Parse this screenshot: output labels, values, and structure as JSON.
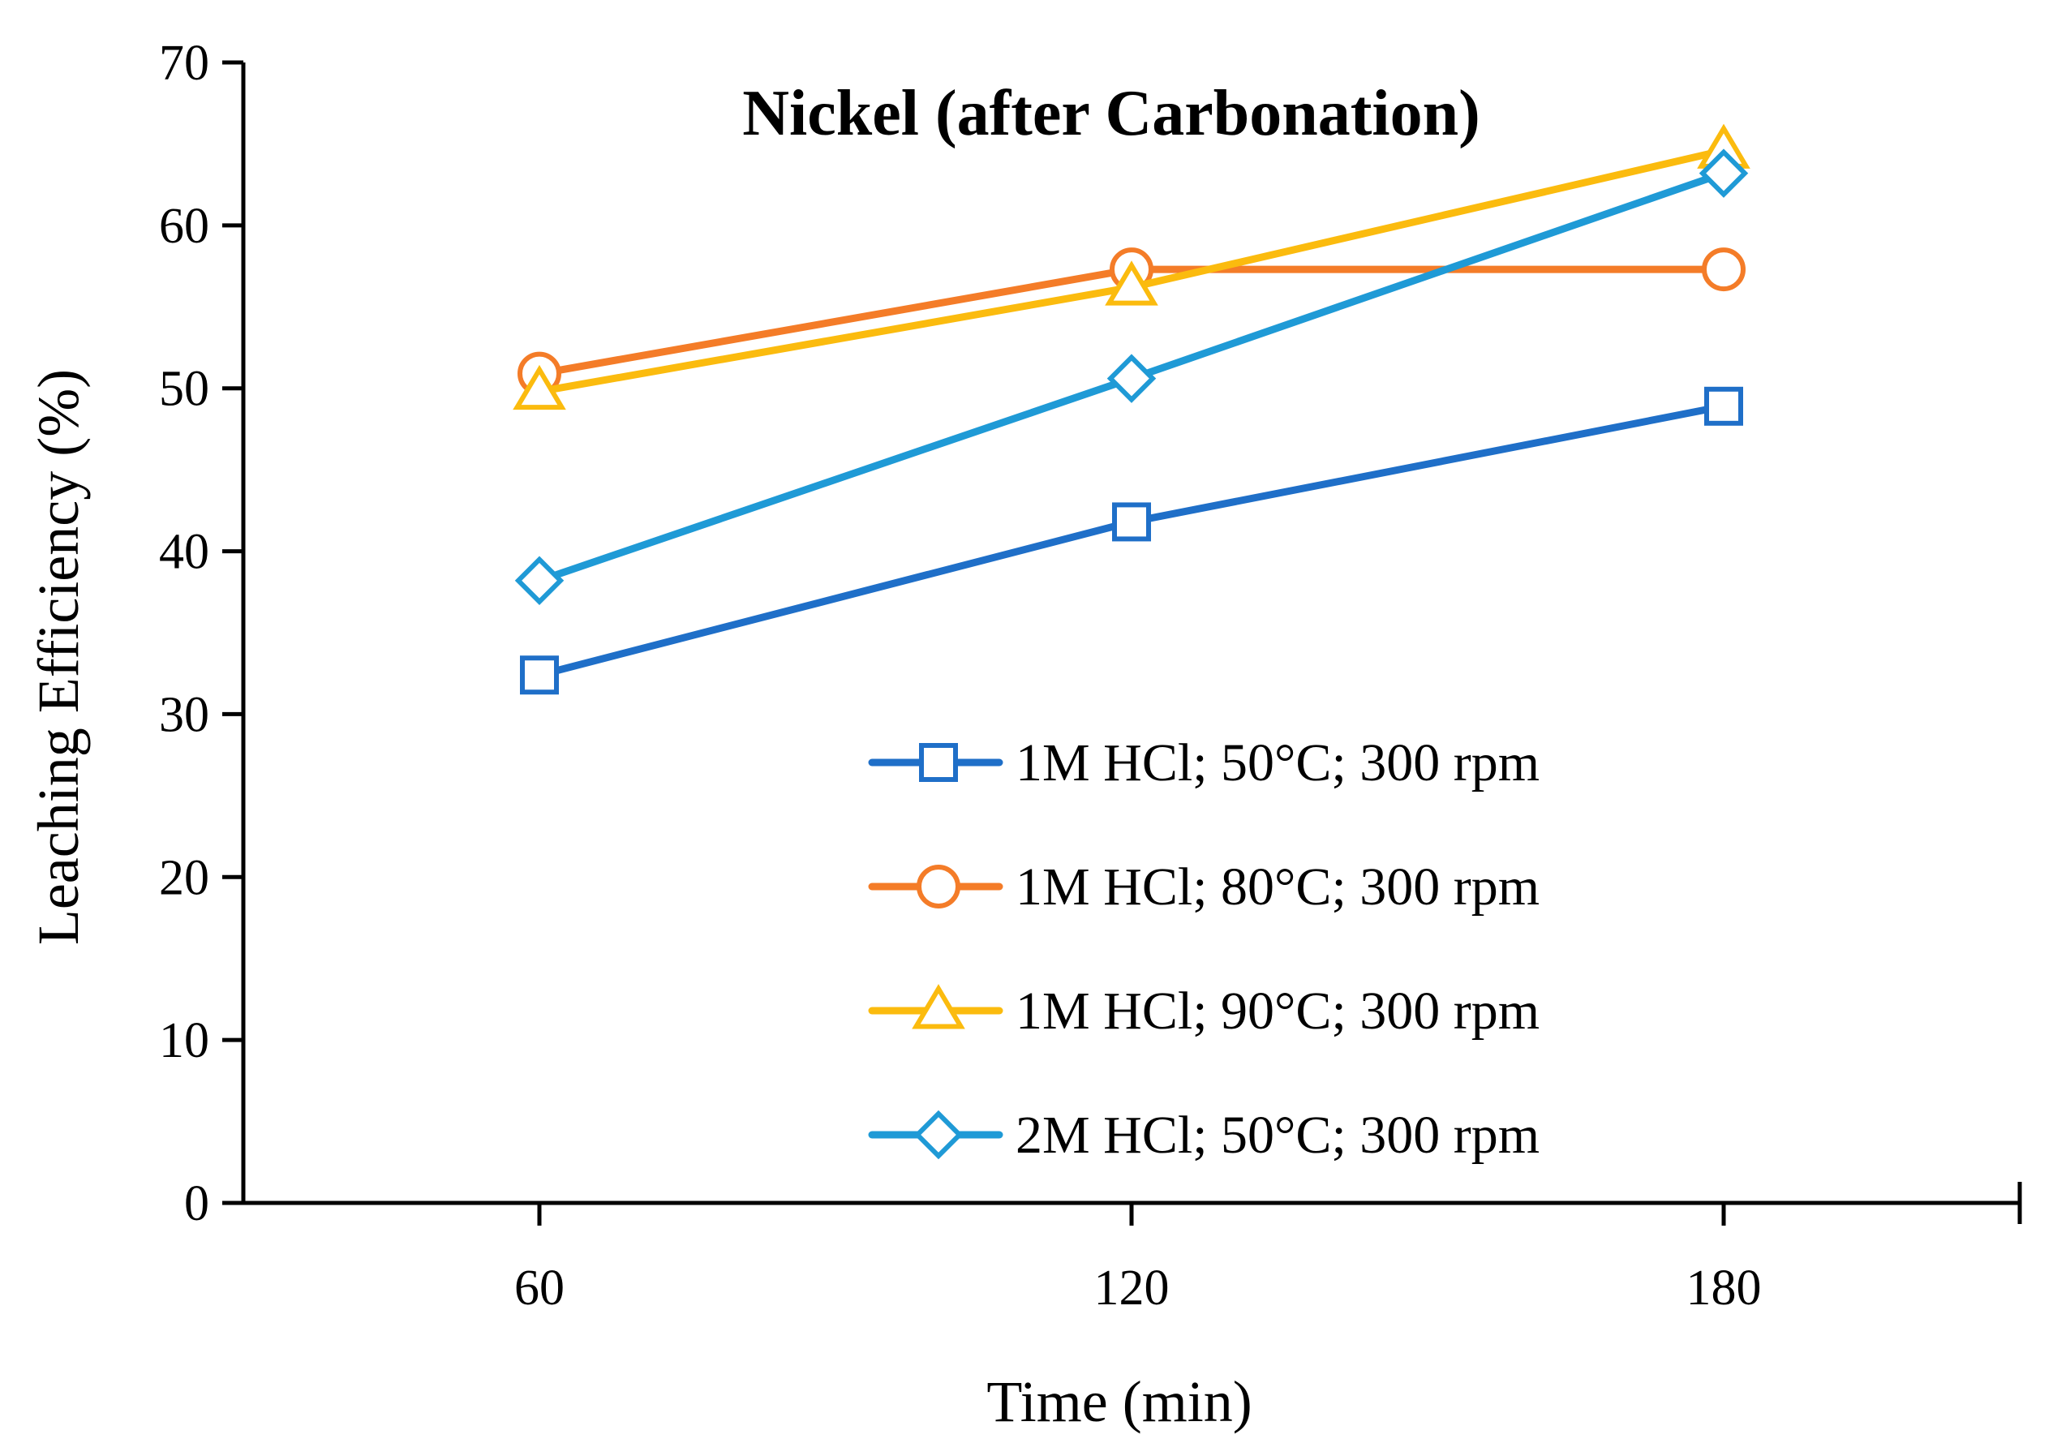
{
  "chart_data": {
    "type": "line",
    "title": "Nickel (after Carbonation)",
    "xlabel": "Time (min)",
    "ylabel": "Leaching Efficiency (%)",
    "x": [
      60,
      120,
      180
    ],
    "x_tick_labels": [
      "60",
      "120",
      "180"
    ],
    "xlim": [
      30,
      210
    ],
    "ylim": [
      0,
      70
    ],
    "y_ticks": [
      0,
      10,
      20,
      30,
      40,
      50,
      60,
      70
    ],
    "grid": false,
    "legend_position": "center-right",
    "series": [
      {
        "name": "1M HCl; 50°C; 300 rpm",
        "values": [
          32.4,
          41.8,
          48.9
        ],
        "color": "#1f6fc8",
        "marker": "square"
      },
      {
        "name": "1M HCl; 80°C; 300 rpm",
        "values": [
          50.9,
          57.3,
          57.3
        ],
        "color": "#f47c28",
        "marker": "circle"
      },
      {
        "name": "1M HCl; 90°C; 300 rpm",
        "values": [
          49.8,
          56.2,
          64.6
        ],
        "color": "#fbbb0e",
        "marker": "triangle"
      },
      {
        "name": "2M HCl; 50°C; 300 rpm",
        "values": [
          38.2,
          50.6,
          63.2
        ],
        "color": "#1f9ad6",
        "marker": "diamond"
      }
    ]
  }
}
